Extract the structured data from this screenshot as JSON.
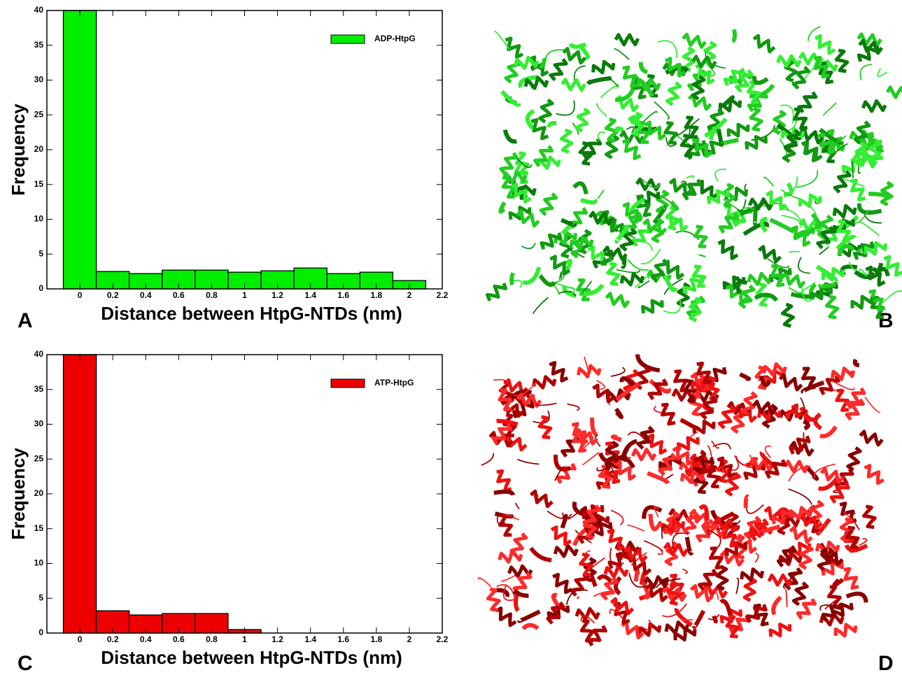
{
  "panel_labels": [
    "A",
    "B",
    "C",
    "D"
  ],
  "chart_data": [
    {
      "type": "histogram",
      "xlabel": "Distance between HtpG-NTDs (nm)",
      "ylabel": "Frequency",
      "bins": [
        -0.1,
        0.1,
        0.3,
        0.5,
        0.7,
        0.9,
        1.1,
        1.3,
        1.5,
        1.7,
        1.9,
        2.1
      ],
      "series": [
        {
          "name": "ADP-HtpG",
          "color": "#00ee00",
          "values": [
            40,
            2.5,
            2.2,
            2.7,
            2.7,
            2.4,
            2.6,
            3.0,
            2.2,
            2.4,
            1.2
          ]
        }
      ],
      "xlim": [
        -0.2,
        2.2
      ],
      "xticks": [
        0,
        0.2,
        0.4,
        0.6,
        0.8,
        1,
        1.2,
        1.4,
        1.6,
        1.8,
        2,
        2.2
      ],
      "ylim": [
        0,
        40
      ],
      "yticks": [
        0,
        5,
        10,
        15,
        20,
        25,
        30,
        35,
        40
      ],
      "legend": "upper right"
    },
    {
      "type": "histogram",
      "xlabel": "Distance between HtpG-NTDs (nm)",
      "ylabel": "Frequency",
      "bins": [
        -0.1,
        0.1,
        0.3,
        0.5,
        0.7,
        0.9,
        1.1
      ],
      "series": [
        {
          "name": "ATP-HtpG",
          "color": "#ee0000",
          "values": [
            40,
            3.2,
            2.6,
            2.8,
            2.8,
            0.5
          ]
        }
      ],
      "xlim": [
        -0.2,
        2.2
      ],
      "xticks": [
        0,
        0.2,
        0.4,
        0.6,
        0.8,
        1,
        1.2,
        1.4,
        1.6,
        1.8,
        2,
        2.2
      ],
      "ylim": [
        0,
        40
      ],
      "yticks": [
        0,
        5,
        10,
        15,
        20,
        25,
        30,
        35,
        40
      ],
      "legend": "upper right"
    }
  ]
}
